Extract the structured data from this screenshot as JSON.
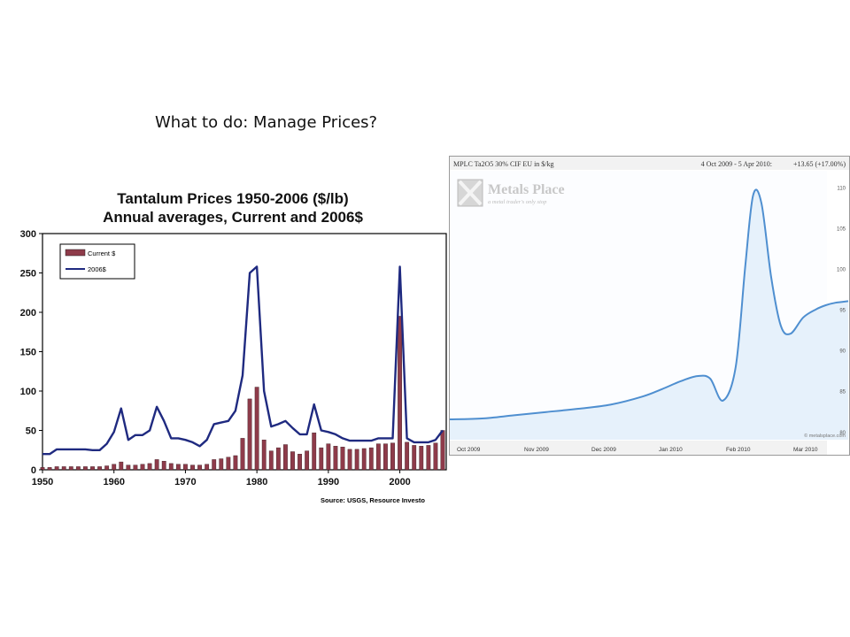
{
  "slide": {
    "title": "What to do: Manage Prices?"
  },
  "chart_data": [
    {
      "type": "bar+line",
      "title": "Tantalum Prices 1950-2006 ($/lb)",
      "subtitle": "Annual averages, Current and 2006$",
      "source": "Source: USGS, Resource Investo",
      "legend": [
        "Current $",
        "2006$"
      ],
      "legend_position": "top-left",
      "xlim": [
        1950,
        2006
      ],
      "ylim": [
        0,
        300
      ],
      "x_ticks": [
        1950,
        1960,
        1970,
        1980,
        1990,
        2000
      ],
      "y_ticks": [
        0,
        50,
        100,
        150,
        200,
        250,
        300
      ],
      "grid": false,
      "x": [
        1950,
        1951,
        1952,
        1953,
        1954,
        1955,
        1956,
        1957,
        1958,
        1959,
        1960,
        1961,
        1962,
        1963,
        1964,
        1965,
        1966,
        1967,
        1968,
        1969,
        1970,
        1971,
        1972,
        1973,
        1974,
        1975,
        1976,
        1977,
        1978,
        1979,
        1980,
        1981,
        1982,
        1983,
        1984,
        1985,
        1986,
        1987,
        1988,
        1989,
        1990,
        1991,
        1992,
        1993,
        1994,
        1995,
        1996,
        1997,
        1998,
        1999,
        2000,
        2001,
        2002,
        2003,
        2004,
        2005,
        2006
      ],
      "series": [
        {
          "name": "Current $",
          "type": "bar",
          "color": "#8e3b4a",
          "values": [
            3,
            3,
            4,
            4,
            4,
            4,
            4,
            4,
            4,
            5,
            7,
            10,
            6,
            6,
            7,
            8,
            13,
            11,
            8,
            7,
            7,
            6,
            6,
            7,
            13,
            14,
            16,
            18,
            40,
            90,
            105,
            38,
            24,
            28,
            32,
            23,
            20,
            24,
            47,
            28,
            33,
            30,
            29,
            26,
            26,
            27,
            28,
            33,
            33,
            34,
            195,
            35,
            31,
            30,
            31,
            34,
            50
          ]
        },
        {
          "name": "2006$",
          "type": "line",
          "color": "#1f2a80",
          "values": [
            20,
            20,
            26,
            26,
            26,
            26,
            26,
            25,
            25,
            33,
            48,
            78,
            38,
            44,
            44,
            50,
            80,
            62,
            40,
            40,
            38,
            35,
            30,
            38,
            58,
            60,
            62,
            75,
            120,
            250,
            258,
            100,
            55,
            58,
            62,
            53,
            45,
            45,
            83,
            50,
            48,
            45,
            40,
            37,
            37,
            37,
            37,
            40,
            40,
            40,
            258,
            40,
            35,
            35,
            35,
            38,
            50
          ]
        }
      ]
    },
    {
      "type": "area",
      "title": "MPLC Ta2O5 30% CIF EU in $/kg",
      "date_range": "4 Oct 2009 - 5 Apr 2010:",
      "change": "+13.65 (+17.00%)",
      "change_color": "#3aa63a",
      "watermark": {
        "brand": "Metals Place",
        "tagline": "a metal trader's only stop"
      },
      "credit": "© metalsplace.com",
      "x_ticks": [
        "Oct 2009",
        "Nov 2009",
        "Dec 2009",
        "Jan 2010",
        "Feb 2010",
        "Mar 2010"
      ],
      "y_ticks": [
        80,
        85,
        90,
        95,
        100,
        105,
        110
      ],
      "ylim": [
        79,
        112
      ],
      "xlim": [
        0,
        6.2
      ],
      "grid": false,
      "line_color": "#4f8fd0",
      "fill_color": "#e6f1fb",
      "series": [
        {
          "x": [
            0,
            0.5,
            1,
            1.5,
            2,
            2.5,
            3,
            3.3,
            3.6,
            3.85,
            4.05,
            4.25,
            4.45,
            4.6,
            4.72,
            4.85,
            5.0,
            5.15,
            5.3,
            5.5,
            5.7,
            5.85,
            6.0,
            6.2
          ],
          "y": [
            81.5,
            81.6,
            82,
            82.4,
            82.8,
            83.3,
            84.3,
            85.2,
            86.2,
            86.8,
            86.5,
            83.8,
            88.0,
            100.5,
            109.0,
            108.0,
            99.0,
            93.0,
            92.0,
            94.0,
            95.0,
            95.5,
            95.8,
            96.0
          ]
        }
      ]
    }
  ]
}
